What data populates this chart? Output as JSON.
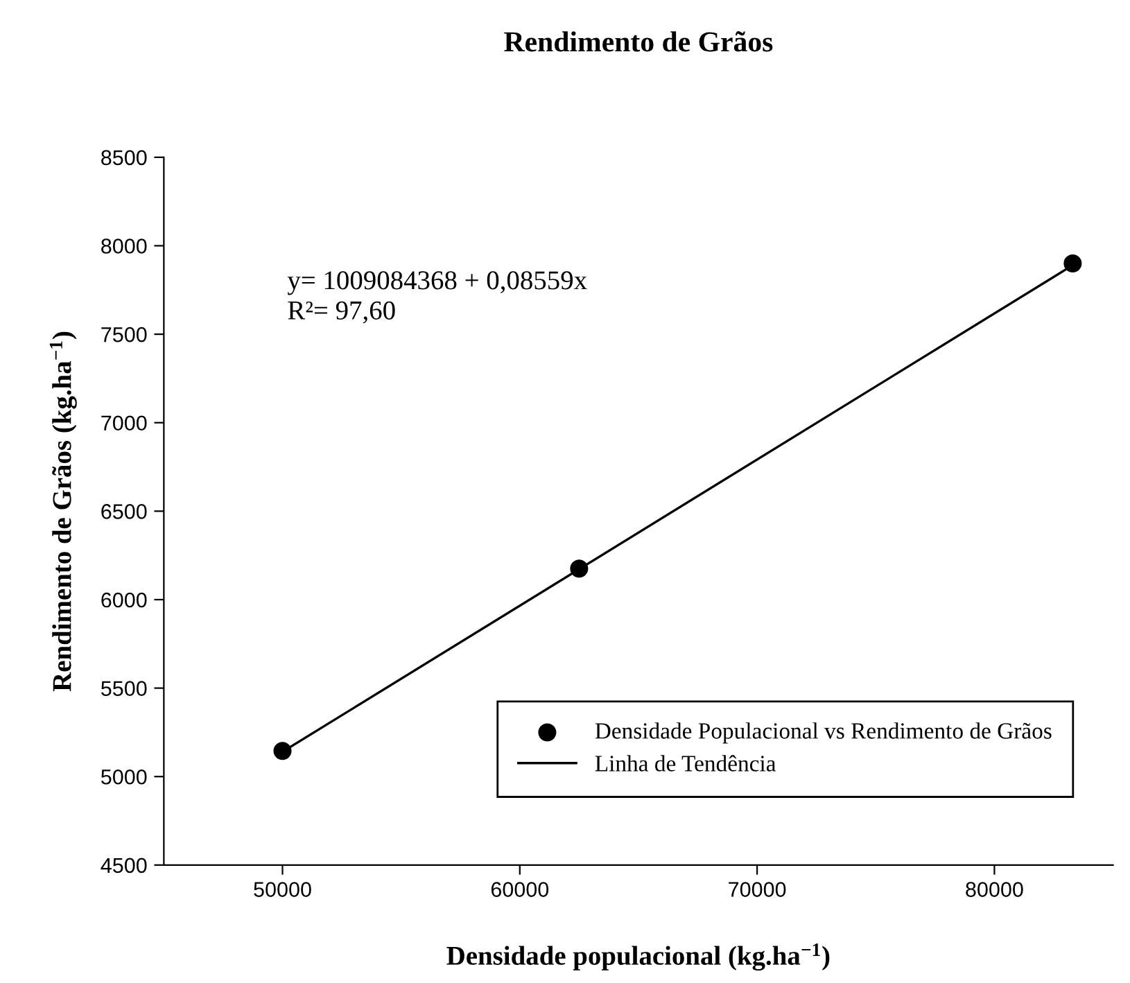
{
  "chart_data": {
    "type": "scatter",
    "title": "Rendimento de Grãos",
    "xlabel": "Densidade populacional (kg.ha$^{−1}$)",
    "ylabel": "Rendimento de Grãos (kg.ha$^{−1}$)",
    "series": [
      {
        "name": "Densidade Populacional vs Rendimento de Grãos",
        "color": "#000000",
        "marker": "circle",
        "x": [
          50000,
          62500,
          83300
        ],
        "values": [
          5145,
          6175,
          7900
        ]
      },
      {
        "name": "Linha de Tendência",
        "type": "line",
        "color": "#000000",
        "line_style": "solid",
        "x": [
          50000,
          83300
        ],
        "values": [
          5140,
          7890
        ]
      }
    ],
    "annotations": [
      {
        "text": "y= 1009084368 + 0,08559x\nR²= 97,60"
      }
    ],
    "xlim": [
      45000,
      85000
    ],
    "xticks": [
      50000,
      60000,
      70000,
      80000
    ],
    "ylim": [
      4500,
      8500
    ],
    "yticks": [
      4500,
      5000,
      5500,
      6000,
      6500,
      7000,
      7500,
      8000,
      8500
    ],
    "grid": false,
    "legend": "bottom right"
  }
}
